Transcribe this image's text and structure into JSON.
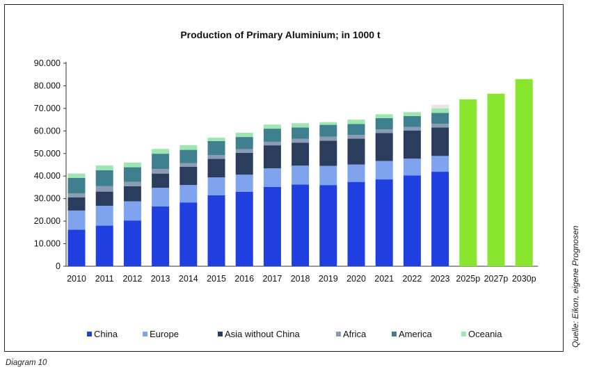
{
  "chart_data": {
    "type": "bar",
    "stacked": true,
    "title": "Production of Primary Aluminium; in 1000 t",
    "categories": [
      "2010",
      "2011",
      "2012",
      "2013",
      "2014",
      "2015",
      "2016",
      "2017",
      "2018",
      "2019",
      "2020",
      "2021",
      "2022",
      "2023",
      "2025p",
      "2027p",
      "2030p"
    ],
    "y_ticks": [
      "0",
      "10.000",
      "20.000",
      "30.000",
      "40.000",
      "50.000",
      "60.000",
      "70.000",
      "80.000",
      "90.000"
    ],
    "ylim": [
      0,
      90000
    ],
    "grid": false,
    "legend_position": "bottom",
    "series": [
      {
        "name": "China",
        "color": "#1f3fe0",
        "values": [
          16200,
          18000,
          20300,
          26500,
          28300,
          31500,
          33000,
          35200,
          36200,
          36000,
          37400,
          38500,
          40300,
          41900,
          null,
          null,
          null
        ]
      },
      {
        "name": "Europe",
        "color": "#7fa3ee",
        "values": [
          8500,
          8800,
          8500,
          8300,
          7700,
          7900,
          7600,
          8200,
          8400,
          8500,
          7700,
          8200,
          7400,
          7000,
          null,
          null,
          null
        ]
      },
      {
        "name": "Asia without China",
        "color": "#2b3d5c",
        "values": [
          5800,
          6300,
          6700,
          6300,
          8100,
          8200,
          9700,
          10200,
          10200,
          11200,
          11500,
          12400,
          12500,
          12600,
          null,
          null,
          null
        ]
      },
      {
        "name": "Africa",
        "color": "#8a9bb4",
        "values": [
          1800,
          2400,
          1900,
          2000,
          1600,
          1700,
          1600,
          1600,
          1700,
          1700,
          1600,
          1600,
          1600,
          1700,
          null,
          null,
          null
        ]
      },
      {
        "name": "America",
        "color": "#3f7f8f",
        "values": [
          6900,
          7100,
          6500,
          6800,
          5900,
          6200,
          5400,
          5800,
          5000,
          5300,
          4900,
          5000,
          4800,
          4800,
          null,
          null,
          null
        ]
      },
      {
        "name": "Oceania",
        "color": "#9ee6b0",
        "values": [
          1900,
          2100,
          2100,
          2100,
          2100,
          1500,
          1900,
          1800,
          1900,
          1200,
          1900,
          1700,
          1700,
          2000,
          null,
          null,
          null
        ]
      }
    ],
    "forecast_series": {
      "color": "#88e62e",
      "values": [
        null,
        null,
        null,
        null,
        null,
        null,
        null,
        null,
        null,
        null,
        null,
        null,
        null,
        null,
        74000,
        76500,
        83000
      ]
    },
    "extra_2023_segment": {
      "color": "#e6e6e6",
      "value": 1600
    }
  },
  "source": "Quelle: Eikon, eigene Prognosen",
  "caption": "Diagram 10"
}
